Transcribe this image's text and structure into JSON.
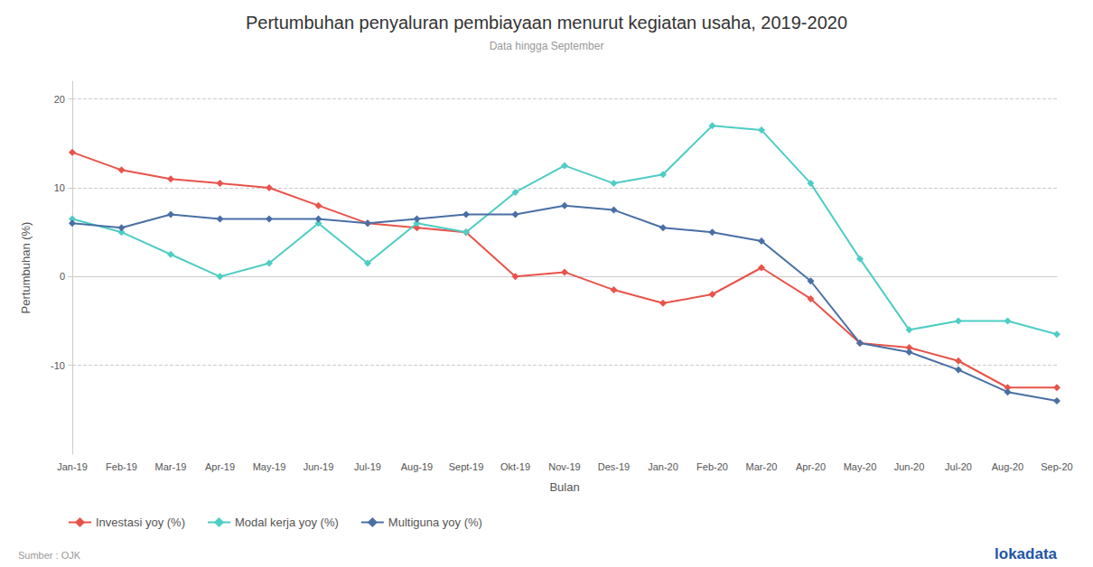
{
  "chart_data": {
    "type": "line",
    "title": "Pertumbuhan penyaluran pembiayaan menurut kegiatan usaha, 2019-2020",
    "subtitle": "Data hingga September",
    "x_label": "Bulan",
    "y_label": "Pertumbuhan (%)",
    "source": "Sumber : OJK",
    "annotations": [
      "lokadata"
    ],
    "categories": [
      "Jan-19",
      "Feb-19",
      "Mar-19",
      "Apr-19",
      "May-19",
      "Jun-19",
      "Jul-19",
      "Aug-19",
      "Sept-19",
      "Okt-19",
      "Nov-19",
      "Des-19",
      "Jan-20",
      "Feb-20",
      "Mar-20",
      "Apr-20",
      "May-20",
      "Jun-20",
      "Jul-20",
      "Aug-20",
      "Sep-20"
    ],
    "series": [
      {
        "name": "Investasi yoy (%)",
        "color": "#e8534a",
        "values": [
          14.0,
          12.0,
          11.0,
          10.5,
          10.0,
          8.0,
          6.0,
          5.5,
          5.0,
          0.0,
          0.5,
          -1.5,
          -3.0,
          -2.0,
          1.0,
          -2.5,
          -7.5,
          -8.0,
          -9.5,
          -12.5,
          -12.5
        ]
      },
      {
        "name": "Modal kerja yoy (%)",
        "color": "#4ecdc4",
        "values": [
          6.5,
          5.0,
          2.5,
          0.0,
          1.5,
          6.0,
          1.5,
          6.0,
          5.0,
          9.5,
          12.5,
          10.5,
          11.5,
          17.0,
          16.5,
          10.5,
          2.0,
          -6.0,
          -5.0,
          -5.0,
          -6.5
        ]
      },
      {
        "name": "Multiguna yoy (%)",
        "color": "#4a6fa5",
        "values": [
          6.0,
          5.5,
          7.0,
          6.5,
          6.5,
          6.5,
          6.0,
          6.5,
          7.0,
          7.0,
          8.0,
          7.5,
          5.5,
          5.0,
          4.0,
          -0.5,
          -7.5,
          -8.5,
          -10.5,
          -13.0,
          -14.0
        ]
      }
    ],
    "ylim": [
      -20,
      22
    ],
    "yticks": [
      -10,
      0,
      10,
      20
    ],
    "grid": true,
    "legend": "lower left",
    "marker": "diamond",
    "line_style": "solid"
  }
}
